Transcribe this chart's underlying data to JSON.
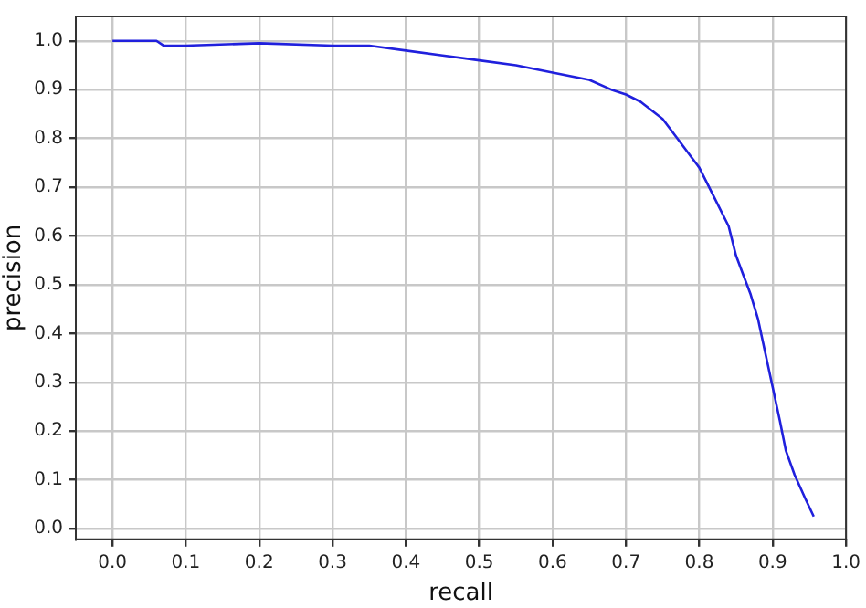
{
  "chart_data": {
    "type": "line",
    "xlabel": "recall",
    "ylabel": "precision",
    "xlim": [
      -0.05,
      1.0
    ],
    "ylim": [
      -0.022,
      1.05
    ],
    "xticks": [
      {
        "value": 0,
        "label": "0.0"
      },
      {
        "value": 0.1,
        "label": "0.1"
      },
      {
        "value": 0.2,
        "label": "0.2"
      },
      {
        "value": 0.3,
        "label": "0.3"
      },
      {
        "value": 0.4,
        "label": "0.4"
      },
      {
        "value": 0.5,
        "label": "0.5"
      },
      {
        "value": 0.6,
        "label": "0.6"
      },
      {
        "value": 0.7,
        "label": "0.7"
      },
      {
        "value": 0.8,
        "label": "0.8"
      },
      {
        "value": 0.9,
        "label": "0.9"
      },
      {
        "value": 1,
        "label": "1.0"
      }
    ],
    "yticks": [
      {
        "value": 0,
        "label": "0.0"
      },
      {
        "value": 0.1,
        "label": "0.1"
      },
      {
        "value": 0.2,
        "label": "0.2"
      },
      {
        "value": 0.3,
        "label": "0.3"
      },
      {
        "value": 0.4,
        "label": "0.4"
      },
      {
        "value": 0.5,
        "label": "0.5"
      },
      {
        "value": 0.6,
        "label": "0.6"
      },
      {
        "value": 0.7,
        "label": "0.7"
      },
      {
        "value": 0.8,
        "label": "0.8"
      },
      {
        "value": 0.9,
        "label": "0.9"
      },
      {
        "value": 1,
        "label": "1.0"
      }
    ],
    "grid": true,
    "marker": "none",
    "line_style": "solid",
    "series": [
      {
        "color": "#2020dd",
        "x": [
          0,
          0.06,
          0.07,
          0.1,
          0.2,
          0.3,
          0.35,
          0.4,
          0.45,
          0.5,
          0.55,
          0.6,
          0.65,
          0.68,
          0.7,
          0.72,
          0.75,
          0.77,
          0.79,
          0.8,
          0.82,
          0.84,
          0.85,
          0.86,
          0.87,
          0.88,
          0.89,
          0.9,
          0.91,
          0.918,
          0.93,
          0.945,
          0.956
        ],
        "values": [
          1.0,
          1.0,
          0.99,
          0.99,
          0.995,
          0.99,
          0.99,
          0.98,
          0.97,
          0.96,
          0.95,
          0.935,
          0.92,
          0.9,
          0.89,
          0.875,
          0.84,
          0.8,
          0.76,
          0.74,
          0.68,
          0.62,
          0.56,
          0.52,
          0.48,
          0.43,
          0.36,
          0.29,
          0.22,
          0.16,
          0.11,
          0.06,
          0.025
        ]
      }
    ]
  }
}
